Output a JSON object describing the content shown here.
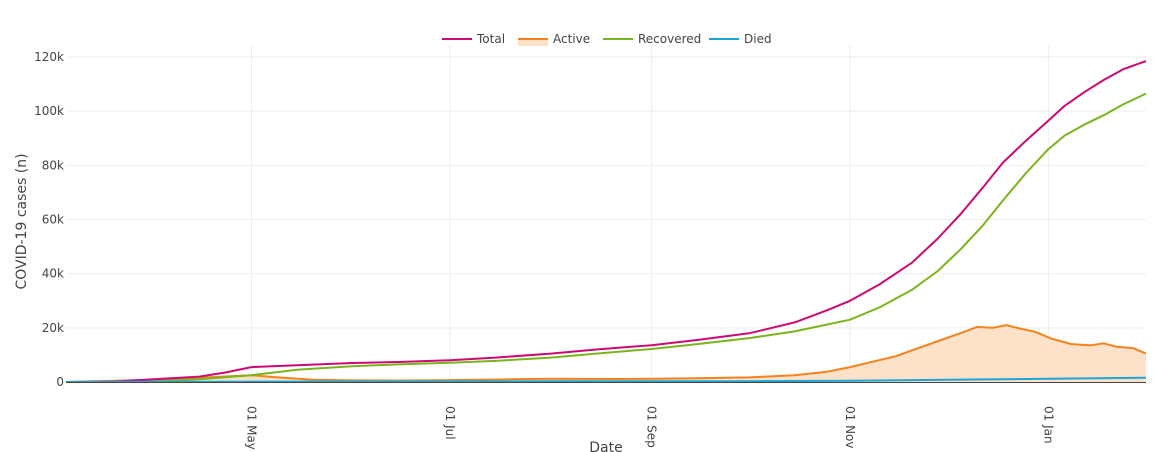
{
  "chart_data": {
    "type": "line",
    "title": "",
    "xlabel": "Date",
    "ylabel": "COVID-19 cases (n)",
    "x_range": [
      "2020-03-05",
      "2021-01-31"
    ],
    "ylim": [
      0,
      120000
    ],
    "x_ticks": [
      {
        "date": "2020-05-01",
        "label": "01 May"
      },
      {
        "date": "2020-07-01",
        "label": "01 Jul"
      },
      {
        "date": "2020-09-01",
        "label": "01 Sep"
      },
      {
        "date": "2020-11-01",
        "label": "01 Nov"
      },
      {
        "date": "2021-01-01",
        "label": "01 Jan"
      }
    ],
    "y_ticks": [
      {
        "value": 0,
        "label": "0"
      },
      {
        "value": 20000,
        "label": "20k"
      },
      {
        "value": 40000,
        "label": "40k"
      },
      {
        "value": 60000,
        "label": "60k"
      },
      {
        "value": 80000,
        "label": "80k"
      },
      {
        "value": 100000,
        "label": "100k"
      },
      {
        "value": 120000,
        "label": "120k"
      }
    ],
    "grid": true,
    "legend_position": "top-center",
    "series": [
      {
        "name": "Total",
        "color": "#cc0a75",
        "fill": false,
        "points": [
          [
            "2020-03-05",
            0
          ],
          [
            "2020-03-20",
            200
          ],
          [
            "2020-04-01",
            1000
          ],
          [
            "2020-04-15",
            2000
          ],
          [
            "2020-04-23",
            3500
          ],
          [
            "2020-05-01",
            5500
          ],
          [
            "2020-05-15",
            6200
          ],
          [
            "2020-06-01",
            7000
          ],
          [
            "2020-06-15",
            7400
          ],
          [
            "2020-07-01",
            8000
          ],
          [
            "2020-07-15",
            9000
          ],
          [
            "2020-08-01",
            10500
          ],
          [
            "2020-08-15",
            12000
          ],
          [
            "2020-09-01",
            13600
          ],
          [
            "2020-09-15",
            15500
          ],
          [
            "2020-10-01",
            18000
          ],
          [
            "2020-10-15",
            22000
          ],
          [
            "2020-10-25",
            26500
          ],
          [
            "2020-11-01",
            30000
          ],
          [
            "2020-11-10",
            36000
          ],
          [
            "2020-11-20",
            44000
          ],
          [
            "2020-11-28",
            53000
          ],
          [
            "2020-12-05",
            62000
          ],
          [
            "2020-12-12",
            72000
          ],
          [
            "2020-12-18",
            81000
          ],
          [
            "2020-12-25",
            89000
          ],
          [
            "2021-01-01",
            96500
          ],
          [
            "2021-01-06",
            102000
          ],
          [
            "2021-01-12",
            107000
          ],
          [
            "2021-01-18",
            111500
          ],
          [
            "2021-01-24",
            115500
          ],
          [
            "2021-01-31",
            118500
          ]
        ]
      },
      {
        "name": "Active",
        "color": "#f5821f",
        "fill": true,
        "fill_color": "#fde2c9",
        "points": [
          [
            "2020-03-05",
            0
          ],
          [
            "2020-04-01",
            800
          ],
          [
            "2020-04-15",
            1600
          ],
          [
            "2020-05-01",
            2500
          ],
          [
            "2020-05-08",
            1800
          ],
          [
            "2020-05-20",
            800
          ],
          [
            "2020-06-01",
            600
          ],
          [
            "2020-06-15",
            500
          ],
          [
            "2020-07-01",
            700
          ],
          [
            "2020-07-20",
            1000
          ],
          [
            "2020-08-01",
            1200
          ],
          [
            "2020-08-20",
            1100
          ],
          [
            "2020-09-01",
            1200
          ],
          [
            "2020-09-15",
            1400
          ],
          [
            "2020-10-01",
            1700
          ],
          [
            "2020-10-15",
            2500
          ],
          [
            "2020-10-25",
            3800
          ],
          [
            "2020-11-01",
            5500
          ],
          [
            "2020-11-08",
            7500
          ],
          [
            "2020-11-15",
            9500
          ],
          [
            "2020-11-22",
            12500
          ],
          [
            "2020-11-29",
            15500
          ],
          [
            "2020-12-06",
            18500
          ],
          [
            "2020-12-10",
            20300
          ],
          [
            "2020-12-15",
            20000
          ],
          [
            "2020-12-19",
            21000
          ],
          [
            "2020-12-23",
            19800
          ],
          [
            "2020-12-28",
            18500
          ],
          [
            "2021-01-02",
            16000
          ],
          [
            "2021-01-08",
            14000
          ],
          [
            "2021-01-14",
            13500
          ],
          [
            "2021-01-18",
            14300
          ],
          [
            "2021-01-22",
            13000
          ],
          [
            "2021-01-27",
            12500
          ],
          [
            "2021-01-31",
            10500
          ]
        ]
      },
      {
        "name": "Recovered",
        "color": "#7ab51d",
        "fill": false,
        "points": [
          [
            "2020-03-05",
            0
          ],
          [
            "2020-04-01",
            200
          ],
          [
            "2020-04-15",
            1000
          ],
          [
            "2020-05-01",
            2500
          ],
          [
            "2020-05-15",
            4500
          ],
          [
            "2020-06-01",
            5800
          ],
          [
            "2020-06-15",
            6500
          ],
          [
            "2020-07-01",
            7100
          ],
          [
            "2020-07-15",
            7800
          ],
          [
            "2020-08-01",
            9000
          ],
          [
            "2020-08-15",
            10500
          ],
          [
            "2020-09-01",
            12200
          ],
          [
            "2020-09-15",
            14000
          ],
          [
            "2020-10-01",
            16200
          ],
          [
            "2020-10-15",
            18700
          ],
          [
            "2020-11-01",
            23000
          ],
          [
            "2020-11-10",
            27500
          ],
          [
            "2020-11-20",
            34000
          ],
          [
            "2020-11-28",
            41000
          ],
          [
            "2020-12-05",
            49000
          ],
          [
            "2020-12-12",
            58000
          ],
          [
            "2020-12-18",
            67000
          ],
          [
            "2020-12-25",
            77000
          ],
          [
            "2021-01-01",
            86000
          ],
          [
            "2021-01-06",
            91000
          ],
          [
            "2021-01-12",
            95000
          ],
          [
            "2021-01-18",
            98500
          ],
          [
            "2021-01-24",
            102500
          ],
          [
            "2021-01-31",
            106500
          ]
        ]
      },
      {
        "name": "Died",
        "color": "#1ba7d4",
        "fill": false,
        "points": [
          [
            "2020-03-05",
            0
          ],
          [
            "2020-04-15",
            80
          ],
          [
            "2020-05-01",
            150
          ],
          [
            "2020-06-01",
            200
          ],
          [
            "2020-08-01",
            250
          ],
          [
            "2020-10-01",
            300
          ],
          [
            "2020-11-01",
            450
          ],
          [
            "2020-12-01",
            800
          ],
          [
            "2021-01-01",
            1200
          ],
          [
            "2021-01-31",
            1600
          ]
        ]
      }
    ]
  }
}
